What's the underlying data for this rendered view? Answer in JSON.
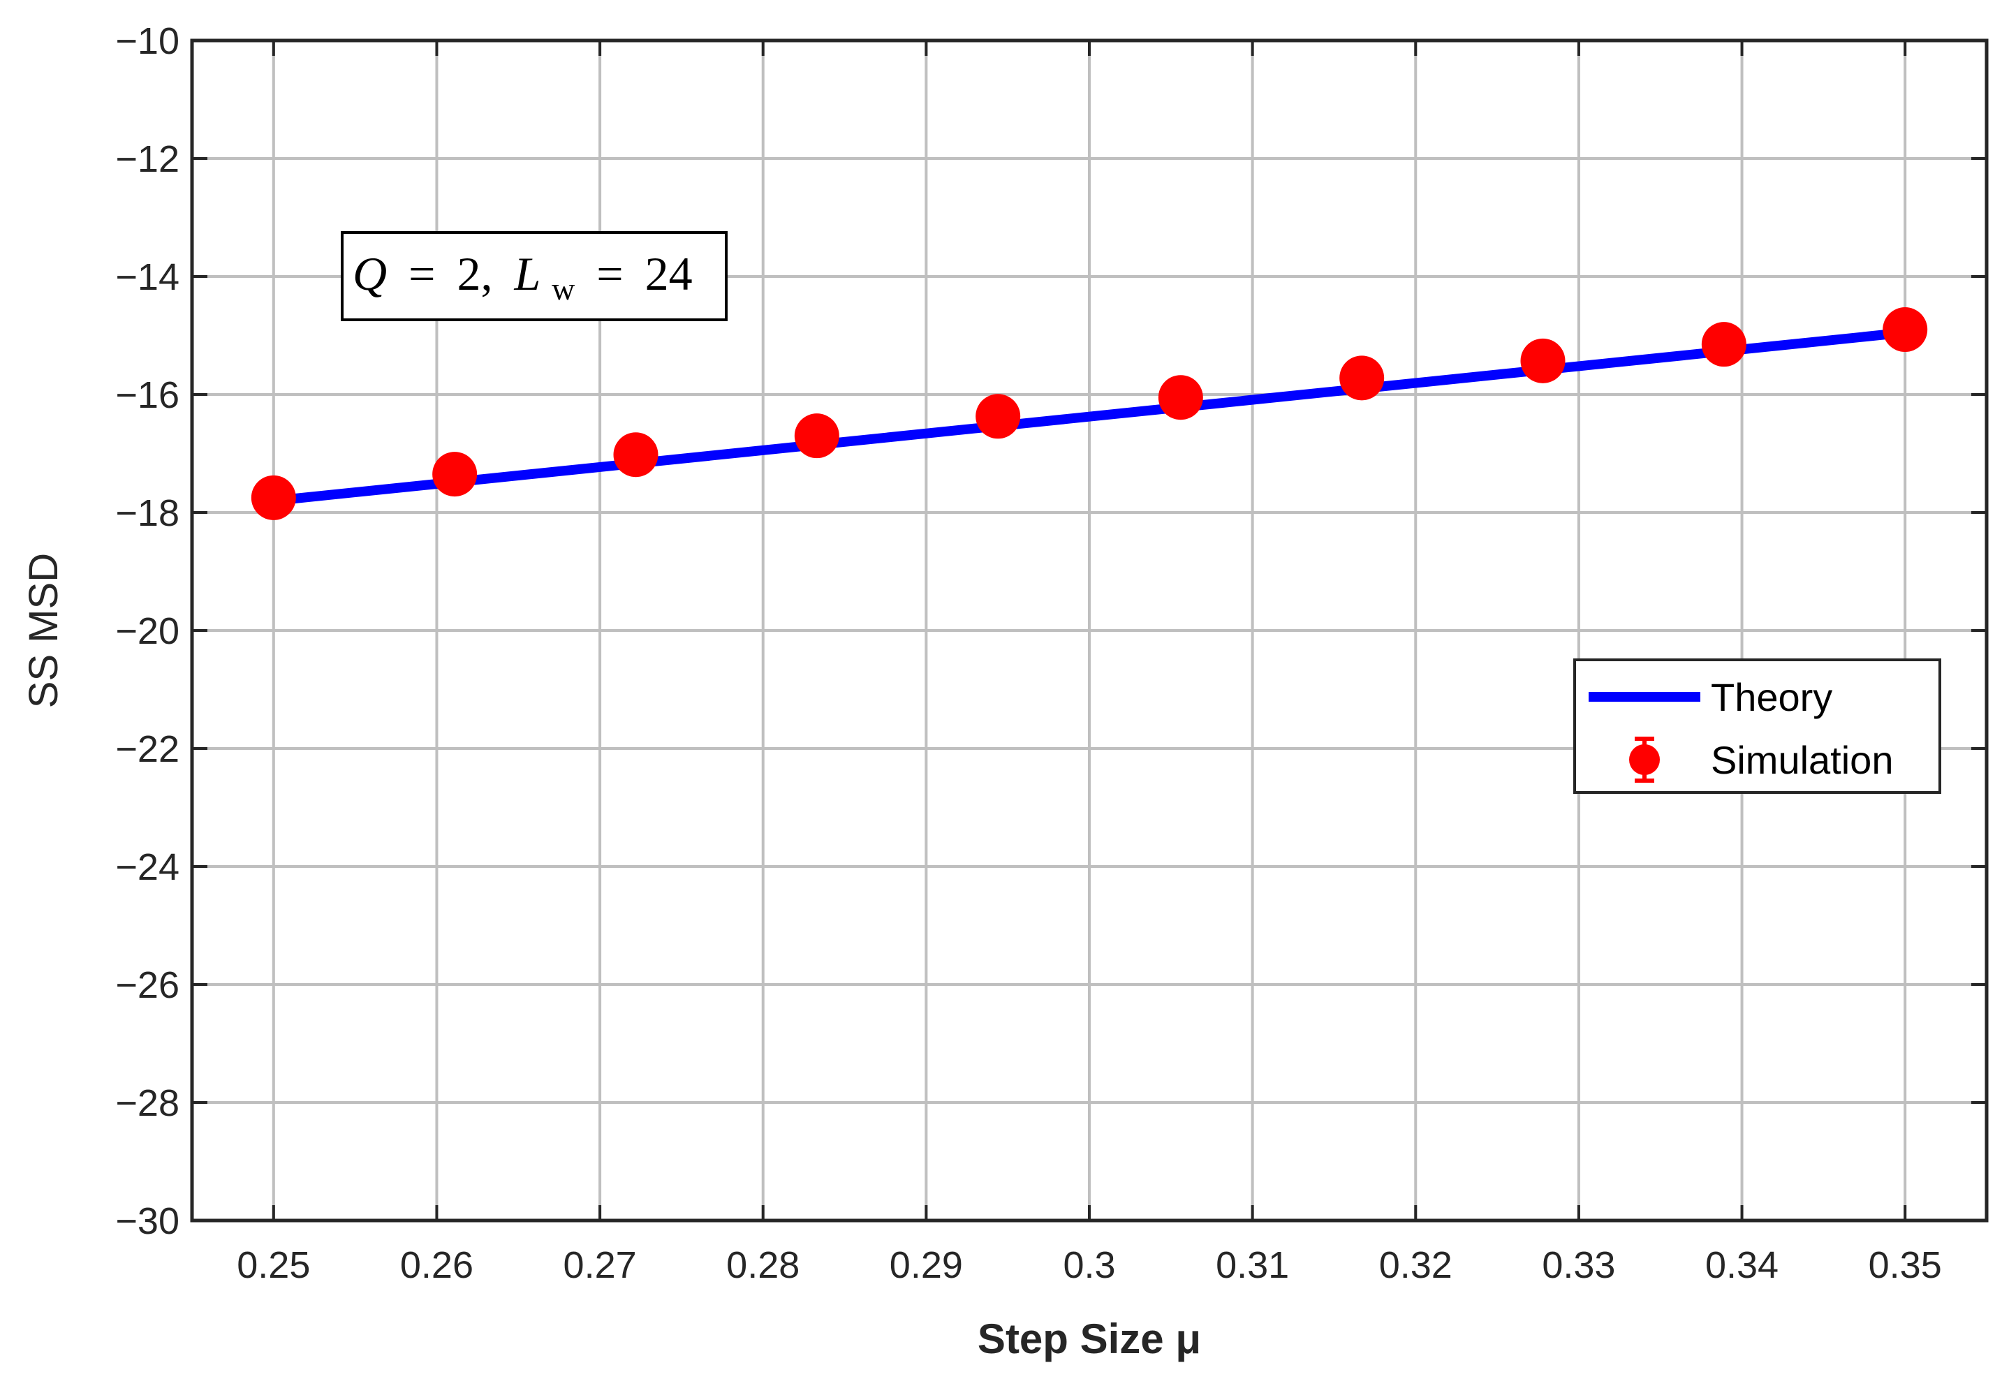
{
  "chart_data": {
    "type": "line",
    "xlabel": "Step Size μ",
    "ylabel": "SS MSD",
    "xlim": [
      0.245,
      0.355
    ],
    "ylim": [
      -30,
      -10
    ],
    "x_ticks": [
      0.25,
      0.26,
      0.27,
      0.28,
      0.29,
      0.3,
      0.31,
      0.32,
      0.33,
      0.34,
      0.35
    ],
    "x_tick_labels": [
      "0.25",
      "0.26",
      "0.27",
      "0.28",
      "0.29",
      "0.3",
      "0.31",
      "0.32",
      "0.33",
      "0.34",
      "0.35"
    ],
    "y_ticks": [
      -10,
      -12,
      -14,
      -16,
      -18,
      -20,
      -22,
      -24,
      -26,
      -28,
      -30
    ],
    "y_tick_labels": [
      "−10",
      "−12",
      "−14",
      "−16",
      "−18",
      "−20",
      "−22",
      "−24",
      "−26",
      "−28",
      "−30"
    ],
    "grid": true,
    "legend_position": "right-middle",
    "annotation": "Q = 2, L_w = 24",
    "annotation_parts": {
      "q": "Q",
      "eq1": "=",
      "q_val": "2,",
      "l": "L",
      "l_sub": "w",
      "eq2": "=",
      "l_val": "24"
    },
    "series": [
      {
        "name": "Theory",
        "kind": "line",
        "color": "#0000ff",
        "x": [
          0.25,
          0.35
        ],
        "y": [
          -17.8,
          -14.95
        ]
      },
      {
        "name": "Simulation",
        "kind": "errorbar",
        "color": "#ff0000",
        "x": [
          0.25,
          0.2611,
          0.2722,
          0.2833,
          0.2944,
          0.3056,
          0.3167,
          0.3278,
          0.3389,
          0.35
        ],
        "y": [
          -17.75,
          -17.35,
          -17.02,
          -16.7,
          -16.37,
          -16.05,
          -15.72,
          -15.43,
          -15.15,
          -14.9
        ],
        "err": [
          0.15,
          0.15,
          0.15,
          0.15,
          0.15,
          0.15,
          0.15,
          0.15,
          0.15,
          0.15
        ]
      }
    ]
  }
}
